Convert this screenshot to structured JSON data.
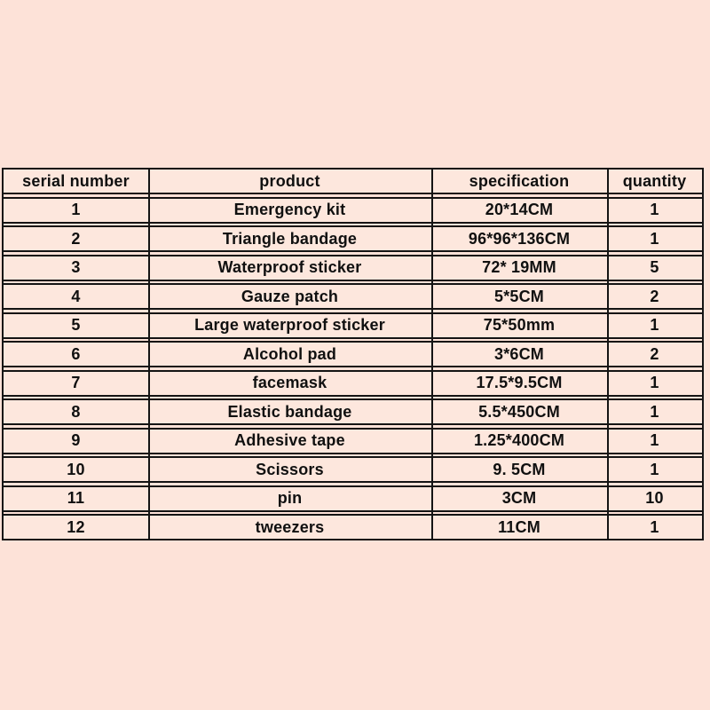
{
  "colors": {
    "page_background": "#fde2d8",
    "cell_background": "#fde7dd",
    "border": "#141414",
    "text": "#101010"
  },
  "table": {
    "headers": [
      "serial number",
      "product",
      "specification",
      "quantity"
    ],
    "rows": [
      [
        "1",
        "Emergency kit",
        "20*14CM",
        "1"
      ],
      [
        "2",
        "Triangle bandage",
        "96*96*136CM",
        "1"
      ],
      [
        "3",
        "Waterproof sticker",
        "72* 19MM",
        "5"
      ],
      [
        "4",
        "Gauze patch",
        "5*5CM",
        "2"
      ],
      [
        "5",
        "Large waterproof sticker",
        "75*50mm",
        "1"
      ],
      [
        "6",
        "Alcohol pad",
        "3*6CM",
        "2"
      ],
      [
        "7",
        "facemask",
        "17.5*9.5CM",
        "1"
      ],
      [
        "8",
        "Elastic bandage",
        "5.5*450CM",
        "1"
      ],
      [
        "9",
        "Adhesive tape",
        "1.25*400CM",
        "1"
      ],
      [
        "10",
        "Scissors",
        "9. 5CM",
        "1"
      ],
      [
        "11",
        "pin",
        "3CM",
        "10"
      ],
      [
        "12",
        "tweezers",
        "11CM",
        "1"
      ]
    ]
  }
}
